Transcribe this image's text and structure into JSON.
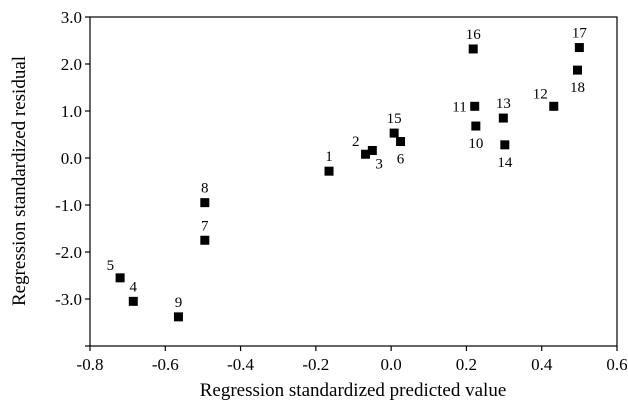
{
  "chart_data": {
    "type": "scatter",
    "title": "",
    "xlabel": "Regression standardized predicted value",
    "ylabel": "Regression standardized residual",
    "xlim": [
      -0.8,
      0.6
    ],
    "ylim": [
      -4.0,
      3.0
    ],
    "grid": false,
    "legend": "none",
    "x_ticks": [
      {
        "value": -0.8,
        "label": "-0.8"
      },
      {
        "value": -0.6,
        "label": "-0.6"
      },
      {
        "value": -0.4,
        "label": "-0.4"
      },
      {
        "value": -0.2,
        "label": "-0.2"
      },
      {
        "value": 0.0,
        "label": "0.0"
      },
      {
        "value": 0.2,
        "label": "0.2"
      },
      {
        "value": 0.4,
        "label": "0.4"
      },
      {
        "value": 0.6,
        "label": "0.6"
      }
    ],
    "y_ticks": [
      {
        "value": 3.0,
        "label": "3.0"
      },
      {
        "value": 2.0,
        "label": "2.0"
      },
      {
        "value": 1.0,
        "label": "1.0"
      },
      {
        "value": 0.0,
        "label": "0.0"
      },
      {
        "value": -1.0,
        "label": "-1.0"
      },
      {
        "value": -2.0,
        "label": "-2.0"
      },
      {
        "value": -3.0,
        "label": "-3.0"
      },
      {
        "value": -4.0,
        "label": ""
      }
    ],
    "marker_color": "#000000",
    "points": [
      {
        "label": "1",
        "x": -0.165,
        "y": -0.28,
        "label_pos": "above"
      },
      {
        "label": "2",
        "x": -0.068,
        "y": 0.08,
        "label_pos": "above-left"
      },
      {
        "label": "3",
        "x": -0.05,
        "y": 0.16,
        "label_pos": "below-right"
      },
      {
        "label": "4",
        "x": -0.685,
        "y": -3.05,
        "label_pos": "above"
      },
      {
        "label": "5",
        "x": -0.72,
        "y": -2.55,
        "label_pos": "above-left"
      },
      {
        "label": "6",
        "x": 0.025,
        "y": 0.35,
        "label_pos": "below"
      },
      {
        "label": "7",
        "x": -0.495,
        "y": -1.75,
        "label_pos": "above"
      },
      {
        "label": "8",
        "x": -0.495,
        "y": -0.95,
        "label_pos": "above"
      },
      {
        "label": "9",
        "x": -0.565,
        "y": -3.38,
        "label_pos": "above"
      },
      {
        "label": "10",
        "x": 0.225,
        "y": 0.68,
        "label_pos": "below"
      },
      {
        "label": "11",
        "x": 0.222,
        "y": 1.1,
        "label_pos": "left"
      },
      {
        "label": "12",
        "x": 0.432,
        "y": 1.1,
        "label_pos": "above-left"
      },
      {
        "label": "13",
        "x": 0.298,
        "y": 0.85,
        "label_pos": "above"
      },
      {
        "label": "14",
        "x": 0.302,
        "y": 0.28,
        "label_pos": "below"
      },
      {
        "label": "15",
        "x": 0.008,
        "y": 0.53,
        "label_pos": "above"
      },
      {
        "label": "16",
        "x": 0.218,
        "y": 2.32,
        "label_pos": "above"
      },
      {
        "label": "17",
        "x": 0.5,
        "y": 2.35,
        "label_pos": "above"
      },
      {
        "label": "18",
        "x": 0.495,
        "y": 1.87,
        "label_pos": "below"
      }
    ]
  }
}
